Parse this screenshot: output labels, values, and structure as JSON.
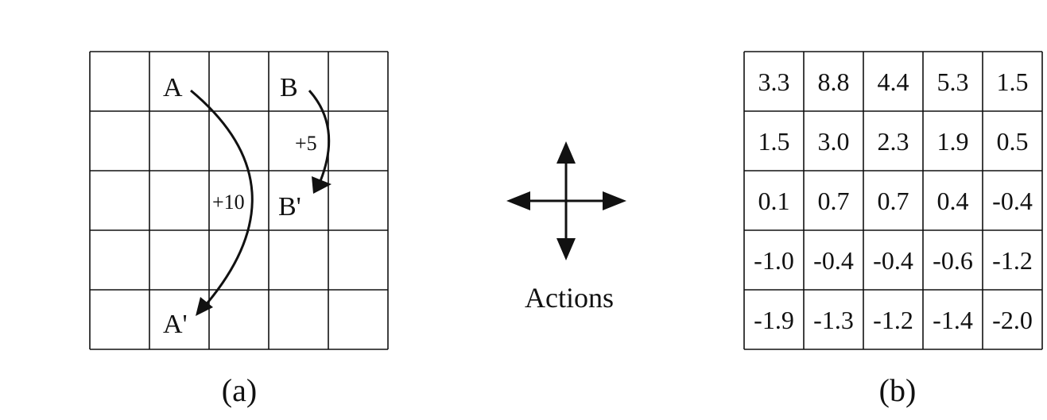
{
  "panel_a": {
    "caption": "(a)",
    "labels": {
      "a": "A",
      "a_prime": "A'",
      "b": "B",
      "b_prime": "B'",
      "reward_a": "+10",
      "reward_b": "+5"
    }
  },
  "actions": {
    "label": "Actions",
    "directions": [
      "up",
      "down",
      "left",
      "right"
    ]
  },
  "panel_b": {
    "caption": "(b)",
    "values": [
      [
        "3.3",
        "8.8",
        "4.4",
        "5.3",
        "1.5"
      ],
      [
        "1.5",
        "3.0",
        "2.3",
        "1.9",
        "0.5"
      ],
      [
        "0.1",
        "0.7",
        "0.7",
        "0.4",
        "-0.4"
      ],
      [
        "-1.0",
        "-0.4",
        "-0.4",
        "-0.6",
        "-1.2"
      ],
      [
        "-1.9",
        "-1.3",
        "-1.2",
        "-1.4",
        "-2.0"
      ]
    ]
  }
}
